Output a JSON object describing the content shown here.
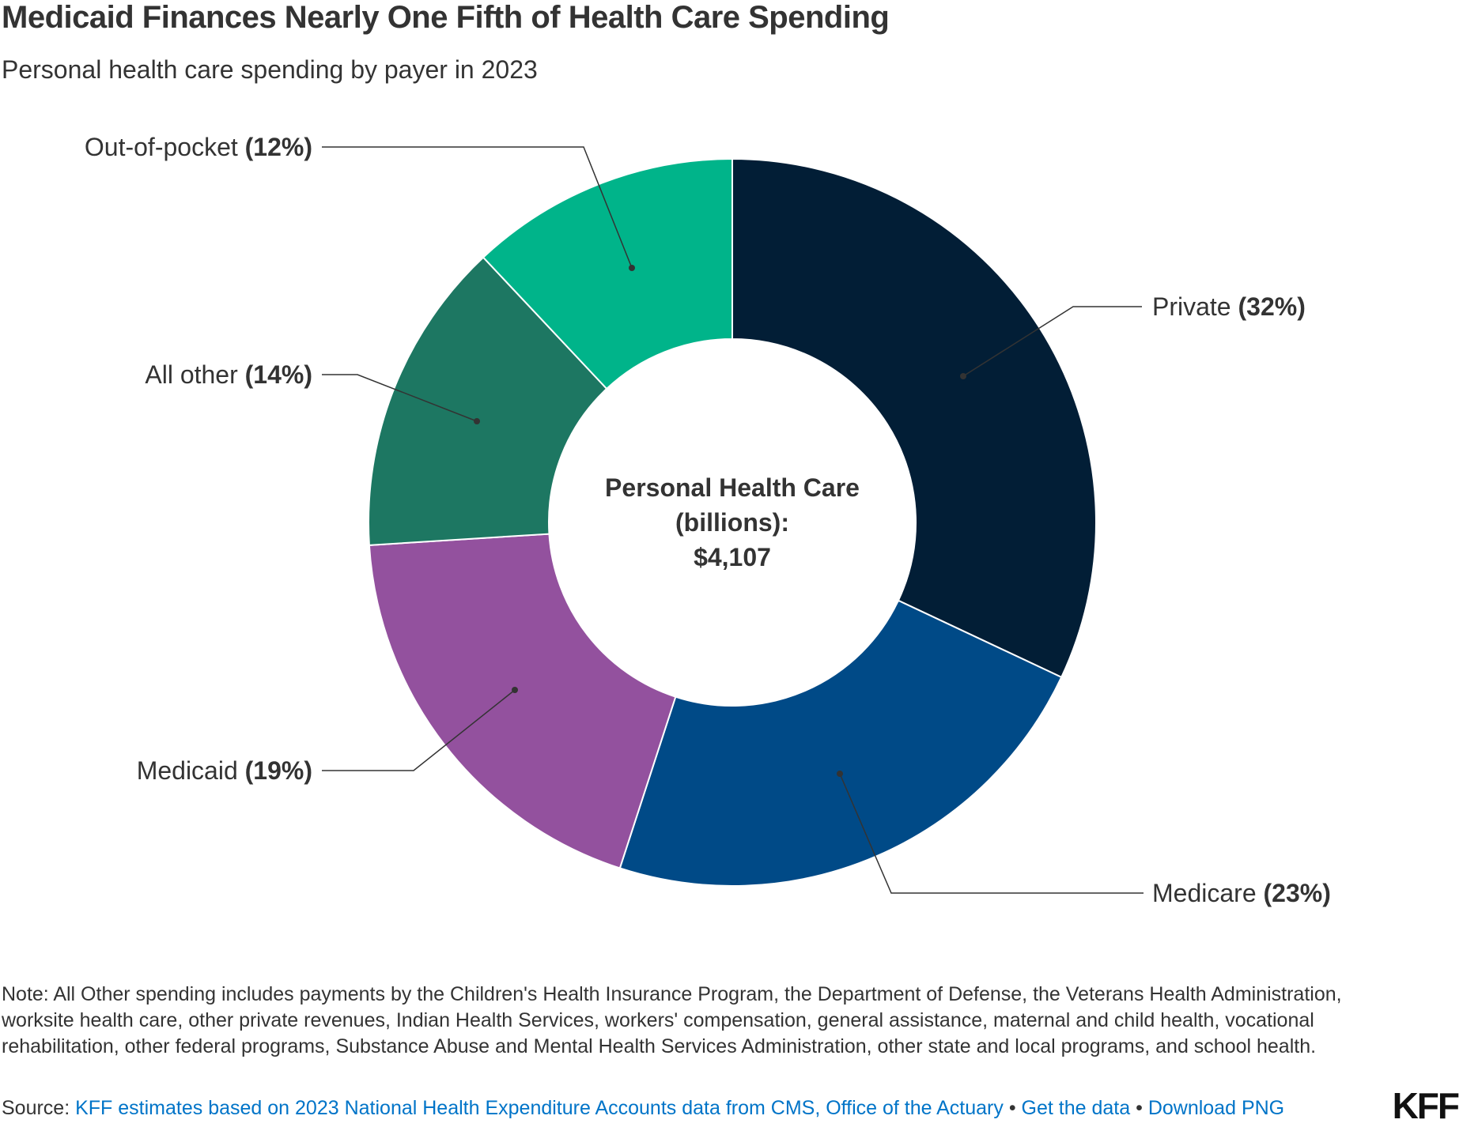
{
  "title": "Medicaid Finances Nearly One Fifth of Health Care Spending",
  "subtitle": "Personal health care spending by payer in 2023",
  "chart_data": {
    "type": "pie",
    "variant": "donut",
    "start_angle": "top, clockwise",
    "center_label": [
      "Personal Health Care",
      "(billions):",
      "$4,107"
    ],
    "slices": [
      {
        "label": "Private",
        "pct_label": "(32%)",
        "value": 32,
        "color": "#021e36"
      },
      {
        "label": "Medicare",
        "pct_label": "(23%)",
        "value": 23,
        "color": "#004a87"
      },
      {
        "label": "Medicaid",
        "pct_label": "(19%)",
        "value": 19,
        "color": "#93519e"
      },
      {
        "label": "All other",
        "pct_label": "(14%)",
        "value": 14,
        "color": "#1d7762"
      },
      {
        "label": "Out-of-pocket",
        "pct_label": "(12%)",
        "value": 12,
        "color": "#00b48a"
      }
    ]
  },
  "note": "Note: All Other spending includes payments by the Children's Health Insurance Program, the Department of Defense, the Veterans Health Administration, worksite health care, other private revenues, Indian Health Services, workers' compensation, general assistance, maternal and child health, vocational rehabilitation, other federal programs, Substance Abuse and Mental Health Services Administration, other state and local programs, and school health.",
  "source": {
    "prefix": "Source: ",
    "link": "KFF estimates based on 2023 National Health Expenditure Accounts data from CMS, Office of the Actuary",
    "sep": " • ",
    "get_data": "Get the data",
    "download": "Download PNG"
  },
  "logo": "KFF"
}
